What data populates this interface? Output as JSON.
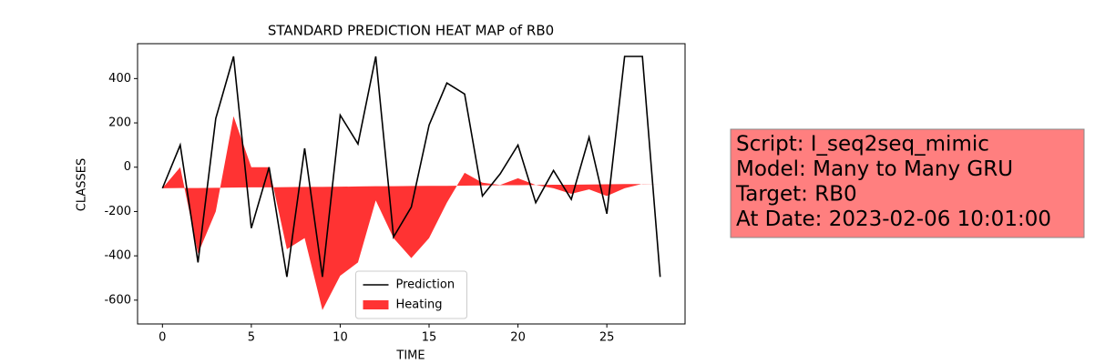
{
  "chart_data": {
    "type": "line_area",
    "title": "STANDARD PREDICTION HEAT MAP of RB0",
    "xlabel": "TIME",
    "ylabel": "CLASSES",
    "x": [
      0,
      1,
      2,
      3,
      4,
      5,
      6,
      7,
      8,
      9,
      10,
      11,
      12,
      13,
      14,
      15,
      16,
      17,
      18,
      19,
      20,
      21,
      22,
      23,
      24,
      25,
      26,
      27,
      28
    ],
    "xlim": [
      -1.4,
      29.4
    ],
    "ylim": [
      -707.5,
      557.5
    ],
    "xticks": [
      0,
      5,
      10,
      15,
      20,
      25
    ],
    "yticks": [
      -600,
      -400,
      -200,
      0,
      200,
      400
    ],
    "series": [
      {
        "name": "Prediction",
        "color": "#000000",
        "kind": "line",
        "values": [
          -95,
          100,
          -430,
          220,
          500,
          -275,
          0,
          -495,
          85,
          -495,
          235,
          105,
          500,
          -315,
          -180,
          190,
          380,
          330,
          -130,
          -30,
          100,
          -160,
          -15,
          -145,
          135,
          -210,
          500,
          500,
          -495
        ]
      },
      {
        "name": "Heating",
        "color": "#ff3333",
        "kind": "area",
        "values": [
          -95,
          0,
          -390,
          -200,
          230,
          0,
          0,
          -370,
          -320,
          -645,
          -490,
          -430,
          -150,
          -320,
          -410,
          -320,
          -160,
          -25,
          -70,
          -80,
          -50,
          -80,
          -95,
          -120,
          -100,
          -130,
          -95,
          -75,
          -75
        ],
        "base": [
          -95,
          -94,
          -94,
          -93,
          -92,
          -91,
          -91,
          -90,
          -89,
          -89,
          -88,
          -87,
          -86,
          -86,
          -85,
          -84,
          -84,
          -83,
          -82,
          -81,
          -81,
          -80,
          -79,
          -79,
          -78,
          -77,
          -76,
          -76,
          -75
        ]
      }
    ],
    "legend": "lower center",
    "annotation": {
      "lines": [
        "Script: I_seq2seq_mimic",
        "Model: Many to Many GRU",
        "Target: RB0",
        "At Date: 2023-02-06 10:01:00"
      ],
      "color": "#ff7f7f"
    }
  }
}
